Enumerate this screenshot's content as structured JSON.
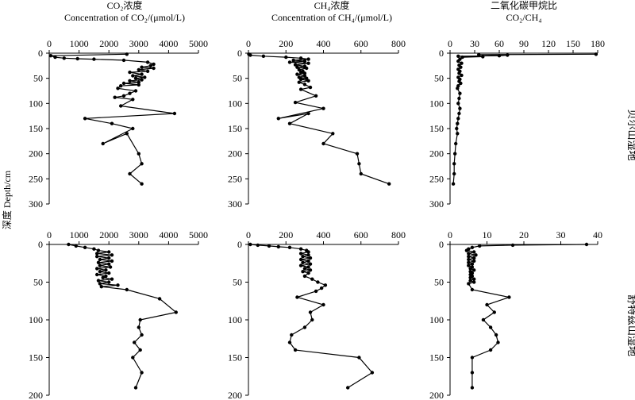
{
  "figure": {
    "ylabel": "深度 Depth/cm",
    "row_labels": [
      "贝尔山湿地",
      "舒特兹山湿地"
    ]
  },
  "columns": [
    {
      "title_cn": "CO₂浓度",
      "title_en": "Concentration of CO₂/(μmol/L)"
    },
    {
      "title_cn": "CH₄浓度",
      "title_en": "Concentration of CH₄/(μmol/L)"
    },
    {
      "title_cn": "二氧化碳甲烷比",
      "title_en": "CO₂/CH₄"
    }
  ],
  "chart_data": [
    {
      "type": "line",
      "row_label": "贝尔山湿地",
      "title": "CO₂浓度 Concentration of CO₂/(μmol/L)",
      "xlim": [
        0,
        5000
      ],
      "xticks": [
        "0",
        "1000",
        "2000",
        "3000",
        "4000",
        "5000"
      ],
      "ylim": [
        0,
        300
      ],
      "yticks": [
        "0",
        "50",
        "100",
        "150",
        "200",
        "250",
        "300"
      ],
      "ylabel": "深度 Depth/cm",
      "series": [
        {
          "x": [
            2600,
            50,
            200,
            500,
            950,
            1500,
            2500,
            3300,
            3500,
            3400,
            3100,
            3500,
            3000,
            3300,
            2700,
            3100,
            2800,
            3200,
            2900,
            3100,
            2700,
            3000,
            2500,
            3000,
            2400,
            2300,
            2900,
            2700,
            2500,
            2200,
            2800,
            2400,
            4200,
            1200,
            2100,
            2800,
            1800,
            2600,
            3000,
            3100,
            2700,
            3100
          ],
          "y": [
            2,
            5,
            8,
            10,
            11,
            12,
            14,
            18,
            22,
            25,
            28,
            30,
            33,
            36,
            38,
            42,
            45,
            48,
            50,
            53,
            55,
            58,
            60,
            63,
            65,
            70,
            75,
            80,
            85,
            88,
            92,
            105,
            120,
            130,
            140,
            150,
            180,
            160,
            200,
            220,
            240,
            260
          ]
        }
      ]
    },
    {
      "type": "line",
      "row_label": "贝尔山湿地",
      "title": "CH₄浓度 Concentration of CH₄/(μmol/L)",
      "xlim": [
        0,
        800
      ],
      "xticks": [
        "0",
        "200",
        "400",
        "600",
        "800"
      ],
      "ylim": [
        0,
        300
      ],
      "yticks": [
        "0",
        "50",
        "100",
        "150",
        "200",
        "250",
        "300"
      ],
      "series": [
        {
          "x": [
            2,
            10,
            80,
            200,
            280,
            320,
            240,
            300,
            220,
            320,
            250,
            300,
            260,
            310,
            270,
            290,
            280,
            300,
            260,
            300,
            270,
            310,
            280,
            320,
            270,
            300,
            330,
            280,
            360,
            250,
            400,
            160,
            320,
            220,
            450,
            400,
            580,
            590,
            600,
            750
          ],
          "y": [
            2,
            4,
            6,
            8,
            10,
            12,
            14,
            16,
            18,
            20,
            23,
            26,
            28,
            30,
            33,
            36,
            38,
            40,
            42,
            45,
            48,
            50,
            52,
            55,
            58,
            62,
            68,
            72,
            85,
            98,
            110,
            130,
            120,
            140,
            160,
            180,
            200,
            220,
            240,
            260
          ]
        }
      ]
    },
    {
      "type": "line",
      "row_label": "贝尔山湿地",
      "title": "二氧化碳甲烷比 CO₂/CH₄",
      "xlim": [
        0,
        180
      ],
      "xticks": [
        "0",
        "30",
        "60",
        "90",
        "120",
        "150",
        "180"
      ],
      "ylim": [
        0,
        300
      ],
      "yticks": [
        "0",
        "50",
        "100",
        "150",
        "200",
        "250",
        "300"
      ],
      "series": [
        {
          "x": [
            178,
            35,
            70,
            60,
            10,
            40,
            15,
            12,
            10,
            14,
            11,
            13,
            10,
            12,
            11,
            14,
            10,
            12,
            11,
            13,
            10,
            9,
            12,
            11,
            10,
            12,
            11,
            10,
            9,
            8,
            9,
            7,
            6,
            5,
            5,
            4
          ],
          "y": [
            2,
            3,
            4,
            5,
            6,
            7,
            8,
            12,
            16,
            20,
            24,
            28,
            32,
            36,
            40,
            44,
            48,
            52,
            56,
            60,
            65,
            70,
            80,
            90,
            100,
            110,
            120,
            130,
            140,
            150,
            160,
            180,
            200,
            220,
            240,
            260
          ]
        }
      ]
    },
    {
      "type": "line",
      "row_label": "舒特兹山湿地",
      "title": "CO₂浓度 Concentration of CO₂/(μmol/L)",
      "xlim": [
        0,
        5000
      ],
      "xticks": [
        "0",
        "1000",
        "2000",
        "3000",
        "4000",
        "5000"
      ],
      "ylim": [
        0,
        200
      ],
      "yticks": [
        "0",
        "50",
        "100",
        "150",
        "200"
      ],
      "ylabel": "深度 Depth/cm",
      "series": [
        {
          "x": [
            650,
            900,
            1200,
            1500,
            1650,
            2000,
            1600,
            2100,
            1600,
            2000,
            1700,
            2100,
            1650,
            2000,
            1700,
            2050,
            1600,
            1900,
            1700,
            2000,
            1600,
            1900,
            1800,
            2100,
            1650,
            2000,
            1700,
            2300,
            1750,
            2600,
            3700,
            4250,
            3050,
            3000,
            3100,
            2850,
            3050,
            2800,
            3100,
            2900
          ],
          "y": [
            0,
            2,
            4,
            6,
            8,
            10,
            12,
            14,
            16,
            18,
            20,
            22,
            24,
            26,
            28,
            30,
            32,
            34,
            36,
            38,
            40,
            42,
            44,
            46,
            48,
            50,
            52,
            54,
            56,
            60,
            72,
            90,
            100,
            110,
            120,
            130,
            140,
            150,
            170,
            190
          ]
        }
      ]
    },
    {
      "type": "line",
      "row_label": "舒特兹山湿地",
      "title": "CH₄浓度 Concentration of CH₄/(μmol/L)",
      "xlim": [
        0,
        800
      ],
      "xticks": [
        "0",
        "200",
        "400",
        "600",
        "800"
      ],
      "ylim": [
        0,
        200
      ],
      "yticks": [
        "0",
        "50",
        "100",
        "150",
        "200"
      ],
      "series": [
        {
          "x": [
            10,
            50,
            110,
            160,
            220,
            280,
            310,
            320,
            280,
            320,
            290,
            330,
            280,
            320,
            290,
            330,
            280,
            320,
            300,
            330,
            290,
            320,
            300,
            340,
            370,
            410,
            390,
            360,
            260,
            400,
            330,
            340,
            300,
            230,
            220,
            250,
            590,
            660,
            530
          ],
          "y": [
            0,
            1,
            2,
            3,
            4,
            6,
            8,
            10,
            12,
            14,
            16,
            18,
            20,
            22,
            24,
            26,
            28,
            30,
            32,
            34,
            36,
            38,
            42,
            46,
            50,
            54,
            58,
            62,
            70,
            80,
            90,
            100,
            110,
            120,
            130,
            140,
            150,
            170,
            190
          ]
        }
      ]
    },
    {
      "type": "line",
      "row_label": "舒特兹山湿地",
      "title": "二氧化碳甲烷比 CO₂/CH₄",
      "xlim": [
        0,
        40
      ],
      "xticks": [
        "0",
        "10",
        "20",
        "30",
        "40"
      ],
      "ylim": [
        0,
        200
      ],
      "yticks": [
        "0",
        "50",
        "100",
        "150",
        "200"
      ],
      "series": [
        {
          "x": [
            37,
            17,
            8,
            6,
            5,
            4.5,
            6.5,
            5,
            7,
            5,
            6.5,
            5,
            6.5,
            5,
            6,
            5,
            6,
            5.5,
            6.5,
            5.5,
            6,
            5.5,
            6,
            5.5,
            6.5,
            5.5,
            6.5,
            5,
            6,
            16,
            10,
            12,
            9,
            11,
            12.5,
            13,
            11,
            6,
            6,
            6
          ],
          "y": [
            0,
            1,
            2,
            4,
            6,
            8,
            10,
            12,
            14,
            16,
            18,
            20,
            22,
            24,
            26,
            28,
            30,
            32,
            34,
            36,
            38,
            40,
            42,
            44,
            46,
            48,
            50,
            52,
            60,
            70,
            80,
            90,
            100,
            110,
            120,
            130,
            140,
            150,
            170,
            190
          ]
        }
      ]
    }
  ]
}
